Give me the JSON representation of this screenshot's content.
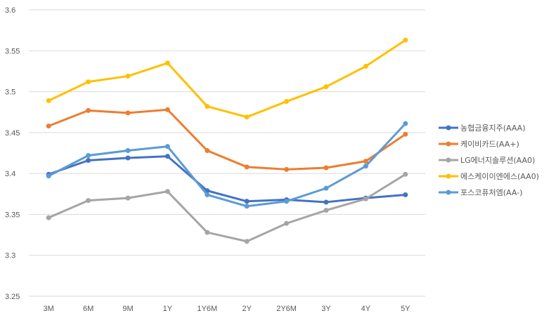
{
  "chart_data": {
    "type": "line",
    "title": "",
    "xlabel": "",
    "ylabel": "",
    "categories": [
      "3M",
      "6M",
      "9M",
      "1Y",
      "1Y6M",
      "2Y",
      "2Y6M",
      "3Y",
      "4Y",
      "5Y"
    ],
    "ylim": [
      3.25,
      3.6
    ],
    "yticks": [
      "3.25",
      "3.3",
      "3.35",
      "3.4",
      "3.45",
      "3.5",
      "3.55",
      "3.6"
    ],
    "grid": true,
    "legend_position": "right",
    "series": [
      {
        "name": "농협금융지주(AAA)",
        "color": "#4472c4",
        "values": [
          3.399,
          3.416,
          3.419,
          3.421,
          3.379,
          3.366,
          3.368,
          3.365,
          3.37,
          3.374
        ]
      },
      {
        "name": "케이비카드(AA+)",
        "color": "#ed7d31",
        "values": [
          3.458,
          3.477,
          3.474,
          3.478,
          3.428,
          3.408,
          3.405,
          3.407,
          3.415,
          3.448
        ]
      },
      {
        "name": "LG에너지솔루션(AA0)",
        "color": "#a5a5a5",
        "values": [
          3.346,
          3.367,
          3.37,
          3.378,
          3.328,
          3.317,
          3.339,
          3.355,
          3.369,
          3.399
        ]
      },
      {
        "name": "에스케이이엔에스(AA0)",
        "color": "#ffc000",
        "values": [
          3.489,
          3.512,
          3.519,
          3.535,
          3.482,
          3.469,
          3.488,
          3.506,
          3.531,
          3.563
        ]
      },
      {
        "name": "포스코퓨처엠(AA-)",
        "color": "#5b9bd5",
        "values": [
          3.397,
          3.422,
          3.428,
          3.433,
          3.374,
          3.36,
          3.366,
          3.382,
          3.409,
          3.461
        ]
      }
    ]
  }
}
